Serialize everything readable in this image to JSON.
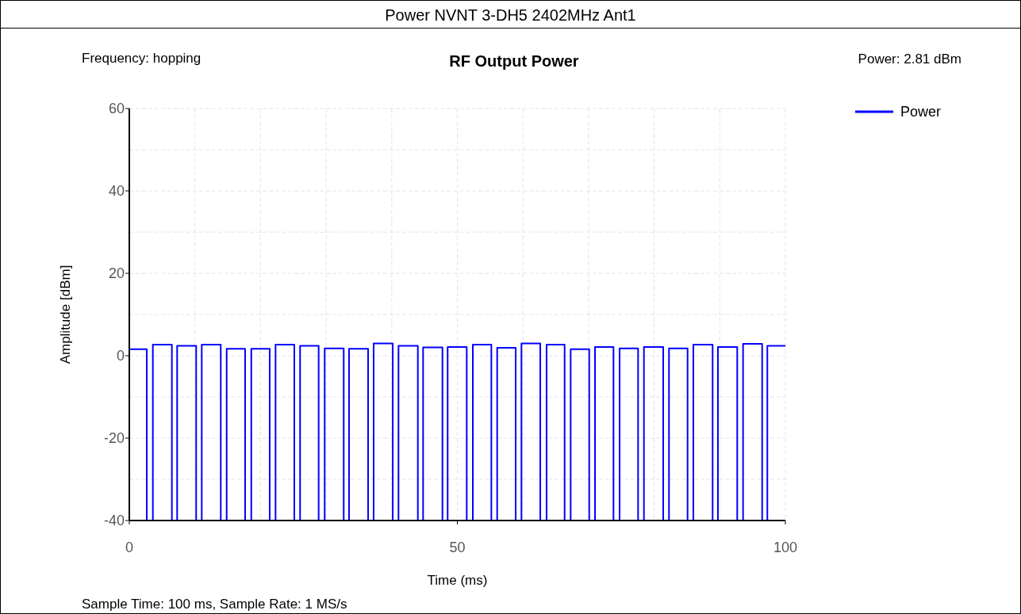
{
  "chart_data": {
    "type": "line",
    "title": "Power NVNT 3-DH5 2402MHz Ant1",
    "subtitle": "RF Output Power",
    "xlabel": "Time (ms)",
    "ylabel": "Amplitude [dBm]",
    "annotations": [
      "Frequency: hopping",
      "Power: 2.81 dBm",
      "Sample Time: 100 ms,  Sample Rate: 1 MS/s"
    ],
    "xlim": [
      0,
      100
    ],
    "ylim": [
      -40,
      60
    ],
    "xticks": [
      0,
      {
        "value": 10,
        "label": null
      },
      {
        "value": 20,
        "label": null
      },
      {
        "value": 30,
        "label": null
      },
      {
        "value": 40,
        "label": null
      },
      50,
      {
        "value": 60,
        "label": null
      },
      {
        "value": 70,
        "label": null
      },
      {
        "value": 80,
        "label": null
      },
      {
        "value": 90,
        "label": null
      },
      100
    ],
    "yticks": [
      -40,
      {
        "value": -30,
        "label": null
      },
      -20,
      {
        "value": -10,
        "label": null
      },
      0,
      {
        "value": 10,
        "label": null
      },
      20,
      {
        "value": 30,
        "label": null
      },
      40,
      {
        "value": 50,
        "label": null
      },
      60
    ],
    "grid": true,
    "legend": "top right",
    "line_style": "solid",
    "marker": "none",
    "series": [
      {
        "name": "Power",
        "color": "#0000ff",
        "x": [
          0,
          2.66,
          2.66,
          3.59,
          3.59,
          6.49,
          6.49,
          7.29,
          7.29,
          10.19,
          10.19,
          11.04,
          11.04,
          13.94,
          13.94,
          14.84,
          14.84,
          17.65,
          17.65,
          18.59,
          18.59,
          21.4,
          21.4,
          22.29,
          22.29,
          25.15,
          25.15,
          26.03,
          26.03,
          28.86,
          28.86,
          29.78,
          29.78,
          32.68,
          32.68,
          33.49,
          33.49,
          36.4,
          36.4,
          37.24,
          37.24,
          40.15,
          40.15,
          41.03,
          41.03,
          43.98,
          43.98,
          44.78,
          44.78,
          47.73,
          47.73,
          48.52,
          48.52,
          51.43,
          51.43,
          52.36,
          52.36,
          55.18,
          55.18,
          56.07,
          56.07,
          58.89,
          58.89,
          59.77,
          59.77,
          62.64,
          62.64,
          63.6,
          63.6,
          66.35,
          66.35,
          67.27,
          67.27,
          70.1,
          70.1,
          70.98,
          70.98,
          73.8,
          73.8,
          74.73,
          74.73,
          77.55,
          77.55,
          78.44,
          78.44,
          81.38,
          81.38,
          82.26,
          82.26,
          85.09,
          85.09,
          85.97,
          85.97,
          88.91,
          88.91,
          89.72,
          89.72,
          92.66,
          92.66,
          93.55,
          93.55,
          96.46,
          96.46,
          97.25,
          97.25,
          100
        ],
        "values": [
          1.6,
          1.6,
          -40,
          -40,
          2.7,
          2.7,
          -40,
          -40,
          2.4,
          2.4,
          -40,
          -40,
          2.7,
          2.7,
          -40,
          -40,
          1.7,
          1.7,
          -40,
          -40,
          1.7,
          1.7,
          -40,
          -40,
          2.7,
          2.7,
          -40,
          -40,
          2.4,
          2.4,
          -40,
          -40,
          1.8,
          1.8,
          -40,
          -40,
          1.7,
          1.7,
          -40,
          -40,
          3,
          3,
          -40,
          -40,
          2.4,
          2.4,
          -40,
          -40,
          2,
          2,
          -40,
          -40,
          2.1,
          2.1,
          -40,
          -40,
          2.7,
          2.7,
          -40,
          -40,
          1.9,
          1.9,
          -40,
          -40,
          3,
          3,
          -40,
          -40,
          2.7,
          2.7,
          -40,
          -40,
          1.6,
          1.6,
          -40,
          -40,
          2.1,
          2.1,
          -40,
          -40,
          1.8,
          1.8,
          -40,
          -40,
          2.1,
          2.1,
          -40,
          -40,
          1.8,
          1.8,
          -40,
          -40,
          2.7,
          2.7,
          -40,
          -40,
          2.1,
          2.1,
          -40,
          -40,
          2.9,
          2.9,
          -40,
          -40,
          2.4,
          2.4
        ]
      }
    ]
  }
}
